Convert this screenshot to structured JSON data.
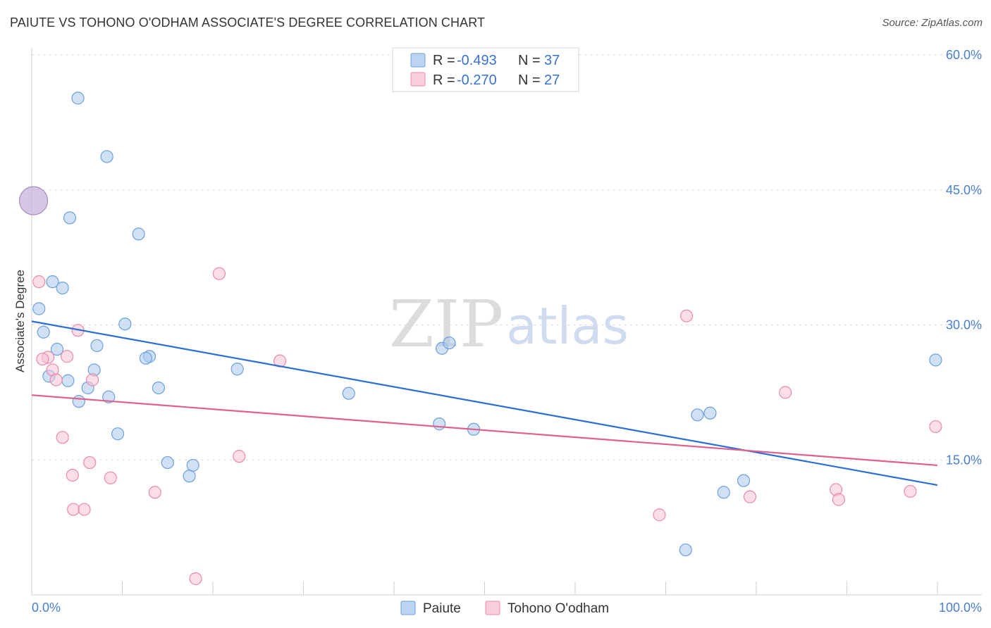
{
  "title": "PAIUTE VS TOHONO O'ODHAM ASSOCIATE'S DEGREE CORRELATION CHART",
  "source": "Source: ZipAtlas.com",
  "watermark": {
    "zip": "ZIP",
    "atlas": "atlas"
  },
  "legend": {
    "r_label": "R =",
    "n_label": "N =",
    "entries": [
      {
        "r": "-0.493",
        "n": "37"
      },
      {
        "r": "-0.270",
        "n": "27"
      }
    ]
  },
  "chart_data": {
    "type": "scatter",
    "title": "PAIUTE VS TOHONO O'ODHAM ASSOCIATE'S DEGREE CORRELATION CHART",
    "xlabel": "",
    "ylabel": "Associate's Degree",
    "xlim": [
      0,
      100
    ],
    "ylim": [
      0,
      60
    ],
    "x_tick_labels": [
      "0.0%",
      "100.0%"
    ],
    "y_ticks": [
      15,
      30,
      45,
      60
    ],
    "y_tick_labels": [
      "15.0%",
      "30.0%",
      "45.0%",
      "60.0%"
    ],
    "grid": true,
    "legend_position": "top-center",
    "series": [
      {
        "name": "Paiute",
        "color": "#a9c8ee",
        "edge": "#6d9fdc",
        "line_color": "#2b6fd6",
        "trend": {
          "x": [
            0,
            100
          ],
          "y": [
            30.4,
            12.2
          ]
        },
        "x": [
          5.1,
          8.3,
          4.2,
          11.8,
          3.4,
          0.8,
          2.3,
          1.3,
          10.3,
          2.8,
          13.0,
          7.2,
          1.9,
          4.0,
          12.6,
          6.9,
          8.5,
          14.0,
          6.2,
          9.5,
          15.0,
          5.2,
          17.4,
          17.8,
          22.7,
          35.0,
          45.3,
          46.1,
          45.0,
          48.8,
          0.2,
          99.8,
          73.5,
          74.9,
          76.4,
          78.6,
          72.2
        ],
        "y": [
          55.2,
          48.7,
          41.9,
          40.1,
          34.1,
          31.8,
          34.8,
          29.2,
          30.1,
          27.3,
          26.5,
          27.7,
          24.3,
          23.8,
          26.3,
          25.0,
          22.0,
          23.0,
          23.0,
          17.9,
          14.7,
          21.5,
          13.2,
          14.4,
          25.1,
          22.4,
          27.4,
          28.0,
          19.0,
          18.4,
          43.8,
          26.1,
          20.0,
          20.2,
          11.4,
          12.7,
          5.0
        ]
      },
      {
        "name": "Tohono O'odham",
        "color": "#f7c3d3",
        "edge": "#e98aaa",
        "line_color": "#e0608c",
        "trend": {
          "x": [
            0,
            100
          ],
          "y": [
            22.2,
            14.4
          ]
        },
        "x": [
          0.8,
          1.8,
          1.2,
          2.3,
          5.1,
          3.9,
          2.7,
          6.7,
          20.7,
          27.4,
          3.4,
          4.5,
          6.4,
          8.7,
          4.6,
          5.8,
          13.6,
          22.9,
          18.1,
          69.3,
          72.3,
          83.2,
          97.0,
          99.8,
          88.8,
          89.1,
          79.3
        ],
        "y": [
          34.8,
          26.4,
          26.2,
          25.0,
          29.4,
          26.5,
          23.9,
          23.9,
          35.7,
          26.0,
          17.5,
          13.3,
          14.7,
          13.0,
          9.5,
          9.5,
          11.4,
          15.4,
          1.8,
          8.9,
          31.0,
          22.5,
          11.5,
          18.7,
          11.7,
          10.6,
          10.9
        ]
      }
    ]
  }
}
